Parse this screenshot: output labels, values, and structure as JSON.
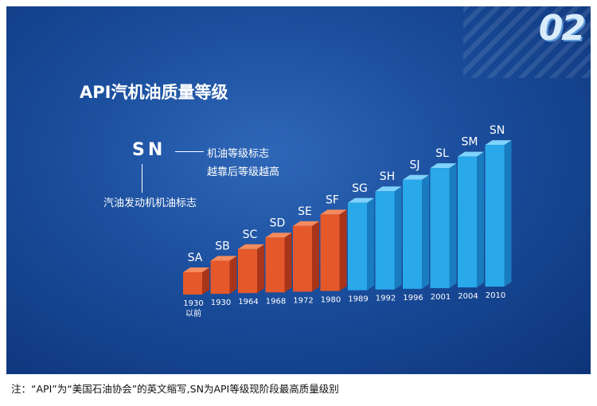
{
  "badge": "02",
  "legend": {
    "code": "SN",
    "note_right_1": "机油等级标志",
    "note_right_2": "越靠后等级越高",
    "note_below": "汽油发动机机油标志"
  },
  "footnote": "注：“API”为“美国石油协会”的英文缩写,SN为API等级现阶段最高质量级别",
  "colors": {
    "old_grade_face": "#e4582a",
    "old_grade_side": "#a8351a",
    "old_grade_top": "#f58b5e",
    "new_grade_face": "#29a8ea",
    "new_grade_side": "#1a7cc0",
    "new_grade_top": "#7fd2fb"
  },
  "chart_data": {
    "type": "bar",
    "title": "API汽机油质量等级",
    "categories": [
      "SA",
      "SB",
      "SC",
      "SD",
      "SE",
      "SF",
      "SG",
      "SH",
      "SJ",
      "SL",
      "SM",
      "SN"
    ],
    "years": [
      [
        "1930",
        "以前"
      ],
      [
        "1930"
      ],
      [
        "1964"
      ],
      [
        "1968"
      ],
      [
        "1972"
      ],
      [
        "1980"
      ],
      [
        "1989"
      ],
      [
        "1992"
      ],
      [
        "1996"
      ],
      [
        "2001"
      ],
      [
        "2004"
      ],
      [
        "2010"
      ]
    ],
    "values": [
      1,
      2,
      3,
      4,
      5,
      6,
      7,
      8,
      9,
      10,
      11,
      12
    ],
    "groups": [
      "old",
      "old",
      "old",
      "old",
      "old",
      "old",
      "new",
      "new",
      "new",
      "new",
      "new",
      "new"
    ],
    "xlabel": "",
    "ylabel": ""
  }
}
